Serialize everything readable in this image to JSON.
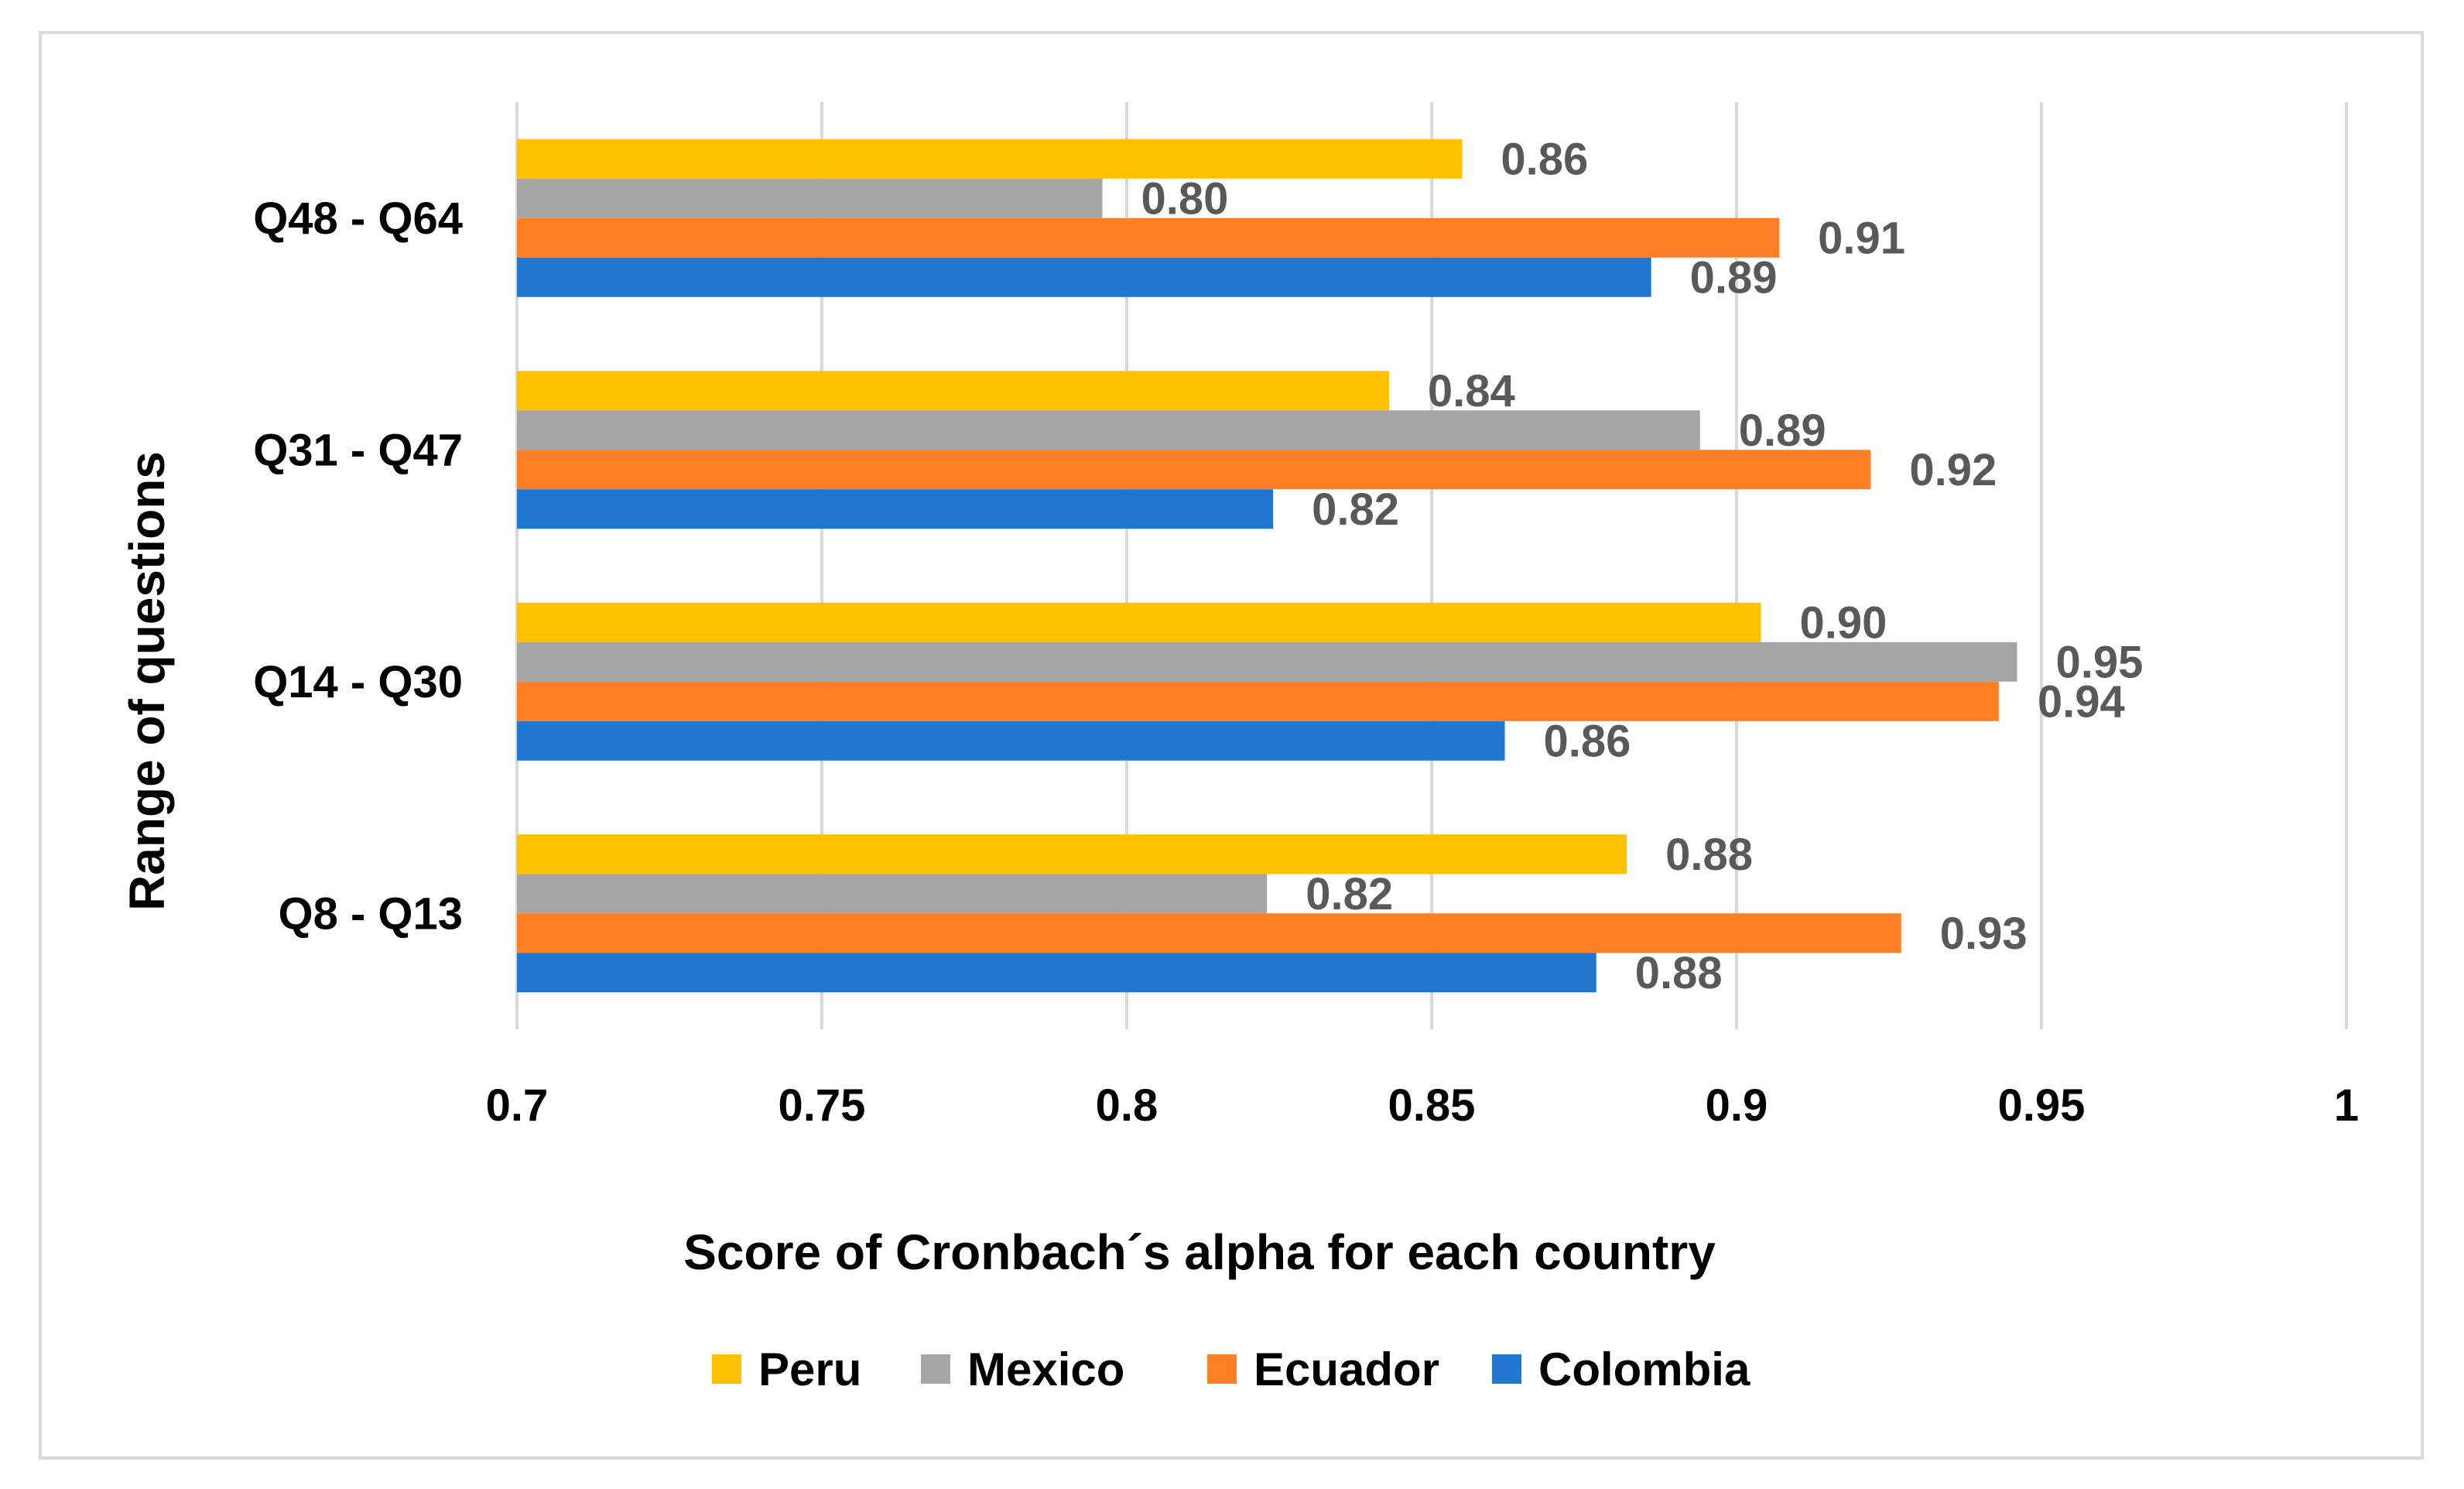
{
  "chart_data": {
    "type": "bar",
    "orientation": "horizontal",
    "categories": [
      "Q48 - Q64",
      "Q31 - Q47",
      "Q14 - Q30",
      "Q8 - Q13"
    ],
    "series": [
      {
        "name": "Peru",
        "color": "#FFC000",
        "values": [
          0.855,
          0.843,
          0.904,
          0.882
        ],
        "labels": [
          "0.86",
          "0.84",
          "0.90",
          "0.88"
        ]
      },
      {
        "name": "Mexico",
        "color": "#A5A5A5",
        "values": [
          0.796,
          0.894,
          0.946,
          0.823
        ],
        "labels": [
          "0.80",
          "0.89",
          "0.95",
          "0.82"
        ]
      },
      {
        "name": "Ecuador",
        "color": "#FF7F27",
        "values": [
          0.907,
          0.922,
          0.943,
          0.927
        ],
        "labels": [
          "0.91",
          "0.92",
          "0.94",
          "0.93"
        ]
      },
      {
        "name": "Colombia",
        "color": "#1F77D0",
        "values": [
          0.886,
          0.824,
          0.862,
          0.877
        ],
        "labels": [
          "0.89",
          "0.82",
          "0.86",
          "0.88"
        ]
      }
    ],
    "xlim": [
      0.7,
      1.0
    ],
    "xticks": [
      "0.7",
      "0.75",
      "0.8",
      "0.85",
      "0.9",
      "0.95",
      "1"
    ],
    "xtick_values": [
      0.7,
      0.75,
      0.8,
      0.85,
      0.9,
      0.95,
      1.0
    ],
    "xlabel": "Score of Cronbach´s alpha for each country",
    "ylabel": "Range of questions",
    "grid": true,
    "legend_position": "bottom"
  }
}
